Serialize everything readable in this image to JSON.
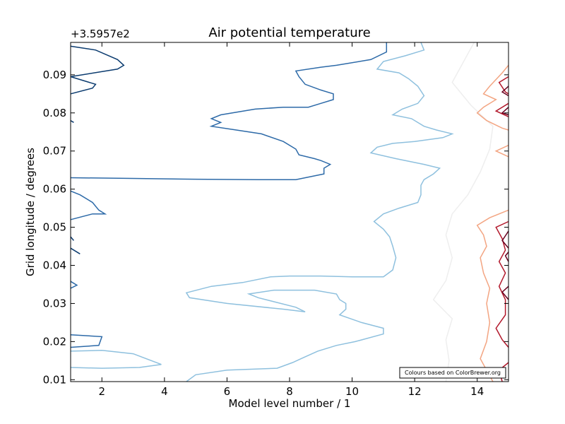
{
  "chart_data": {
    "type": "contour",
    "title": "Air potential temperature",
    "xlabel": "Model level number / 1",
    "ylabel": "Grid longitude / degrees",
    "y_offset_label": "+3.5957e2",
    "credit": "Colours based on ColorBrewer.org",
    "xlim": [
      1,
      15
    ],
    "ylim": [
      0.0095,
      0.0985
    ],
    "x_ticks": [
      2,
      4,
      6,
      8,
      10,
      12,
      14
    ],
    "x_tick_labels": [
      "2",
      "4",
      "6",
      "8",
      "10",
      "12",
      "14"
    ],
    "y_ticks": [
      0.01,
      0.02,
      0.03,
      0.04,
      0.05,
      0.06,
      0.07,
      0.08,
      0.09
    ],
    "y_tick_labels": [
      "0.01",
      "0.02",
      "0.03",
      "0.04",
      "0.05",
      "0.06",
      "0.07",
      "0.08",
      "0.09"
    ],
    "grid": false,
    "colormap": "RdBu_r (ColorBrewer)",
    "contours": [
      {
        "color": "#0b3b6f",
        "points": [
          [
            1.0,
            0.0975
          ],
          [
            1.8,
            0.0965
          ],
          [
            2.5,
            0.094
          ],
          [
            2.7,
            0.0925
          ],
          [
            2.5,
            0.0915
          ],
          [
            1.0,
            0.0895
          ]
        ]
      },
      {
        "color": "#0b3b6f",
        "points": [
          [
            1.0,
            0.0895
          ],
          [
            1.8,
            0.0875
          ],
          [
            1.7,
            0.0865
          ],
          [
            1.0,
            0.085
          ]
        ]
      },
      {
        "color": "#0b3b6f",
        "points": [
          [
            1.0,
            0.078
          ],
          [
            1.1,
            0.0775
          ]
        ]
      },
      {
        "color": "#0b3b6f",
        "points": [
          [
            1.0,
            0.0475
          ],
          [
            1.1,
            0.0465
          ]
        ]
      },
      {
        "color": "#0b3b6f",
        "points": [
          [
            1.0,
            0.0445
          ],
          [
            1.3,
            0.043
          ]
        ]
      },
      {
        "color": "#2d6aa8",
        "points": [
          [
            11.1,
            0.0985
          ],
          [
            11.1,
            0.096
          ],
          [
            10.6,
            0.094
          ],
          [
            9.5,
            0.0925
          ],
          [
            9.0,
            0.092
          ],
          [
            8.2,
            0.091
          ],
          [
            8.3,
            0.0895
          ],
          [
            8.5,
            0.0875
          ],
          [
            9.0,
            0.086
          ],
          [
            9.4,
            0.085
          ],
          [
            9.4,
            0.0835
          ],
          [
            9.0,
            0.0825
          ],
          [
            8.6,
            0.0815
          ],
          [
            7.8,
            0.0815
          ],
          [
            6.9,
            0.081
          ],
          [
            5.8,
            0.0795
          ],
          [
            5.5,
            0.0785
          ],
          [
            5.8,
            0.0775
          ],
          [
            5.5,
            0.0765
          ],
          [
            6.3,
            0.0755
          ],
          [
            7.1,
            0.0745
          ],
          [
            7.8,
            0.0725
          ],
          [
            8.2,
            0.0705
          ],
          [
            8.3,
            0.069
          ],
          [
            8.8,
            0.068
          ],
          [
            9.0,
            0.0675
          ],
          [
            9.3,
            0.0665
          ],
          [
            9.1,
            0.0655
          ],
          [
            9.1,
            0.064
          ],
          [
            8.2,
            0.0625
          ],
          [
            7.0,
            0.0625
          ],
          [
            5.0,
            0.0626
          ],
          [
            3.0,
            0.0628
          ],
          [
            1.0,
            0.063
          ]
        ]
      },
      {
        "color": "#2d6aa8",
        "points": [
          [
            1.0,
            0.0595
          ],
          [
            1.3,
            0.0585
          ],
          [
            1.7,
            0.0565
          ],
          [
            1.9,
            0.0545
          ],
          [
            2.1,
            0.0535
          ],
          [
            1.7,
            0.0535
          ],
          [
            1.0,
            0.052
          ]
        ]
      },
      {
        "color": "#2d6aa8",
        "points": [
          [
            1.0,
            0.0358
          ],
          [
            1.2,
            0.0348
          ],
          [
            1.0,
            0.034
          ]
        ]
      },
      {
        "color": "#2d6aa8",
        "points": [
          [
            1.0,
            0.0218
          ],
          [
            2.0,
            0.0213
          ],
          [
            1.9,
            0.019
          ],
          [
            1.0,
            0.0185
          ]
        ]
      },
      {
        "color": "#8ec0de",
        "points": [
          [
            12.2,
            0.0985
          ],
          [
            12.3,
            0.0965
          ],
          [
            11.7,
            0.095
          ],
          [
            11.0,
            0.0935
          ],
          [
            10.8,
            0.0915
          ],
          [
            11.5,
            0.0905
          ],
          [
            11.8,
            0.089
          ],
          [
            12.1,
            0.087
          ],
          [
            12.3,
            0.0845
          ],
          [
            12.1,
            0.0825
          ],
          [
            11.6,
            0.081
          ],
          [
            11.3,
            0.0795
          ],
          [
            11.9,
            0.0785
          ],
          [
            12.3,
            0.0765
          ],
          [
            12.7,
            0.0755
          ],
          [
            13.2,
            0.0745
          ],
          [
            12.9,
            0.0735
          ],
          [
            12.0,
            0.0725
          ],
          [
            11.3,
            0.072
          ],
          [
            10.8,
            0.071
          ],
          [
            10.6,
            0.0695
          ],
          [
            11.4,
            0.068
          ],
          [
            12.3,
            0.0665
          ],
          [
            12.8,
            0.0655
          ],
          [
            12.6,
            0.064
          ],
          [
            12.3,
            0.0625
          ],
          [
            12.2,
            0.061
          ],
          [
            12.2,
            0.0585
          ],
          [
            12.1,
            0.0565
          ],
          [
            11.5,
            0.055
          ],
          [
            11.0,
            0.0535
          ],
          [
            10.7,
            0.0515
          ],
          [
            11.0,
            0.0495
          ],
          [
            11.2,
            0.0475
          ],
          [
            11.3,
            0.045
          ],
          [
            11.4,
            0.042
          ],
          [
            11.3,
            0.0388
          ],
          [
            11.0,
            0.037
          ],
          [
            10.0,
            0.037
          ],
          [
            9.0,
            0.0372
          ],
          [
            8.0,
            0.0372
          ],
          [
            7.4,
            0.037
          ],
          [
            6.5,
            0.0355
          ],
          [
            5.5,
            0.0345
          ],
          [
            4.7,
            0.0328
          ],
          [
            4.8,
            0.0315
          ],
          [
            6.0,
            0.03
          ],
          [
            7.8,
            0.0285
          ],
          [
            8.5,
            0.0278
          ],
          [
            8.2,
            0.029
          ],
          [
            7.0,
            0.0315
          ],
          [
            6.7,
            0.0325
          ],
          [
            7.5,
            0.0335
          ],
          [
            8.8,
            0.0335
          ],
          [
            9.5,
            0.0325
          ],
          [
            9.6,
            0.031
          ],
          [
            9.8,
            0.03
          ],
          [
            9.8,
            0.0285
          ],
          [
            9.6,
            0.027
          ],
          [
            10.3,
            0.025
          ],
          [
            11.0,
            0.0235
          ],
          [
            11.0,
            0.022
          ],
          [
            10.1,
            0.02
          ],
          [
            9.5,
            0.019
          ],
          [
            8.9,
            0.0175
          ],
          [
            8.5,
            0.016
          ],
          [
            8.1,
            0.0145
          ],
          [
            7.6,
            0.013
          ],
          [
            6.0,
            0.0125
          ],
          [
            5.0,
            0.0113
          ],
          [
            4.7,
            0.0095
          ]
        ]
      },
      {
        "color": "#8ec0de",
        "points": [
          [
            1.0,
            0.0175
          ],
          [
            2.0,
            0.0177
          ],
          [
            3.0,
            0.0168
          ],
          [
            3.9,
            0.014
          ],
          [
            3.2,
            0.0132
          ],
          [
            2.0,
            0.013
          ],
          [
            1.0,
            0.0132
          ]
        ]
      },
      {
        "color": "#eeeeee",
        "points": [
          [
            13.9,
            0.0985
          ],
          [
            13.6,
            0.094
          ],
          [
            13.2,
            0.088
          ],
          [
            13.8,
            0.082
          ],
          [
            14.5,
            0.0765
          ],
          [
            14.4,
            0.0705
          ],
          [
            14.1,
            0.0645
          ],
          [
            13.7,
            0.0585
          ],
          [
            13.2,
            0.0535
          ],
          [
            13.0,
            0.048
          ],
          [
            13.2,
            0.042
          ],
          [
            13.0,
            0.036
          ],
          [
            12.6,
            0.031
          ],
          [
            13.2,
            0.026
          ],
          [
            13.0,
            0.0205
          ],
          [
            13.1,
            0.015
          ],
          [
            13.0,
            0.0095
          ]
        ]
      },
      {
        "color": "#f3a582",
        "points": [
          [
            15.0,
            0.0925
          ],
          [
            14.8,
            0.0905
          ],
          [
            14.4,
            0.087
          ],
          [
            14.2,
            0.085
          ],
          [
            14.6,
            0.0835
          ],
          [
            14.2,
            0.0815
          ],
          [
            14.0,
            0.08
          ],
          [
            14.3,
            0.078
          ],
          [
            14.8,
            0.076
          ],
          [
            15.0,
            0.0755
          ]
        ]
      },
      {
        "color": "#f3a582",
        "points": [
          [
            15.0,
            0.0715
          ],
          [
            14.6,
            0.07
          ],
          [
            15.0,
            0.0685
          ]
        ]
      },
      {
        "color": "#f3a582",
        "points": [
          [
            15.0,
            0.0545
          ],
          [
            14.4,
            0.0525
          ],
          [
            14.0,
            0.0505
          ],
          [
            14.2,
            0.048
          ],
          [
            14.3,
            0.045
          ],
          [
            14.1,
            0.042
          ],
          [
            14.2,
            0.038
          ],
          [
            14.4,
            0.034
          ],
          [
            14.3,
            0.03
          ],
          [
            14.4,
            0.025
          ],
          [
            14.3,
            0.02
          ],
          [
            14.1,
            0.0155
          ],
          [
            14.3,
            0.0125
          ],
          [
            14.5,
            0.0095
          ]
        ]
      },
      {
        "color": "#b2182b",
        "points": [
          [
            15.0,
            0.0895
          ],
          [
            14.7,
            0.088
          ],
          [
            14.9,
            0.0855
          ],
          [
            15.0,
            0.085
          ]
        ]
      },
      {
        "color": "#b2182b",
        "points": [
          [
            15.0,
            0.0825
          ],
          [
            14.6,
            0.0805
          ],
          [
            15.0,
            0.079
          ]
        ]
      },
      {
        "color": "#b2182b",
        "points": [
          [
            15.0,
            0.0515
          ],
          [
            14.6,
            0.05
          ],
          [
            14.8,
            0.047
          ],
          [
            14.9,
            0.044
          ],
          [
            14.7,
            0.041
          ],
          [
            14.9,
            0.038
          ],
          [
            14.7,
            0.0345
          ],
          [
            14.9,
            0.031
          ],
          [
            14.9,
            0.027
          ],
          [
            14.6,
            0.0235
          ],
          [
            14.8,
            0.0205
          ],
          [
            15.0,
            0.0185
          ]
        ]
      },
      {
        "color": "#b2182b",
        "points": [
          [
            15.0,
            0.0145
          ],
          [
            14.7,
            0.0125
          ],
          [
            14.8,
            0.0095
          ]
        ]
      },
      {
        "color": "#67001f",
        "points": [
          [
            15.0,
            0.087
          ],
          [
            14.8,
            0.0855
          ],
          [
            15.0,
            0.0845
          ]
        ]
      },
      {
        "color": "#67001f",
        "points": [
          [
            15.0,
            0.0815
          ],
          [
            14.8,
            0.08
          ],
          [
            15.0,
            0.0795
          ]
        ]
      },
      {
        "color": "#67001f",
        "points": [
          [
            15.0,
            0.049
          ],
          [
            14.8,
            0.0465
          ],
          [
            15.0,
            0.0445
          ]
        ]
      },
      {
        "color": "#67001f",
        "points": [
          [
            15.0,
            0.0435
          ],
          [
            14.9,
            0.0425
          ],
          [
            15.0,
            0.041
          ]
        ]
      },
      {
        "color": "#67001f",
        "points": [
          [
            15.0,
            0.0345
          ],
          [
            14.8,
            0.033
          ],
          [
            15.0,
            0.031
          ]
        ]
      }
    ]
  }
}
